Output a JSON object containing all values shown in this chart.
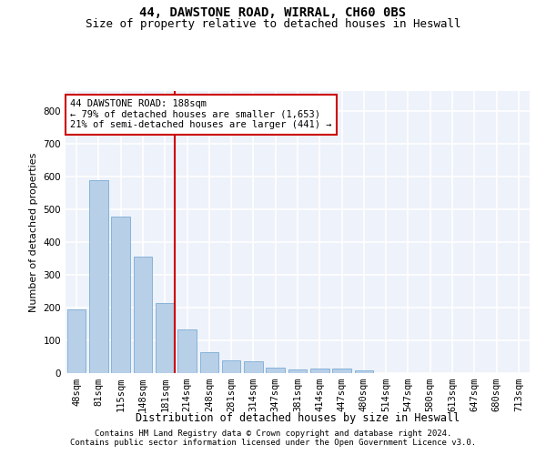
{
  "title1": "44, DAWSTONE ROAD, WIRRAL, CH60 0BS",
  "title2": "Size of property relative to detached houses in Heswall",
  "xlabel": "Distribution of detached houses by size in Heswall",
  "ylabel": "Number of detached properties",
  "footnote1": "Contains HM Land Registry data © Crown copyright and database right 2024.",
  "footnote2": "Contains public sector information licensed under the Open Government Licence v3.0.",
  "categories": [
    "48sqm",
    "81sqm",
    "115sqm",
    "148sqm",
    "181sqm",
    "214sqm",
    "248sqm",
    "281sqm",
    "314sqm",
    "347sqm",
    "381sqm",
    "414sqm",
    "447sqm",
    "480sqm",
    "514sqm",
    "547sqm",
    "580sqm",
    "613sqm",
    "647sqm",
    "680sqm",
    "713sqm"
  ],
  "values": [
    193,
    588,
    478,
    355,
    215,
    132,
    63,
    40,
    35,
    18,
    10,
    13,
    13,
    8,
    0,
    0,
    0,
    0,
    0,
    0,
    0
  ],
  "bar_color": "#b8cfe8",
  "bar_edge_color": "#7aacd4",
  "highlight_line_color": "#cc0000",
  "annotation_text": "44 DAWSTONE ROAD: 188sqm\n← 79% of detached houses are smaller (1,653)\n21% of semi-detached houses are larger (441) →",
  "annotation_box_color": "#ffffff",
  "annotation_box_edge": "#cc0000",
  "ylim": [
    0,
    860
  ],
  "yticks": [
    0,
    100,
    200,
    300,
    400,
    500,
    600,
    700,
    800
  ],
  "background_color": "#eef2fa",
  "grid_color": "#ffffff",
  "title1_fontsize": 10,
  "title2_fontsize": 9,
  "xlabel_fontsize": 8.5,
  "ylabel_fontsize": 8,
  "tick_fontsize": 7.5,
  "annotation_fontsize": 7.5,
  "footnote_fontsize": 6.5
}
